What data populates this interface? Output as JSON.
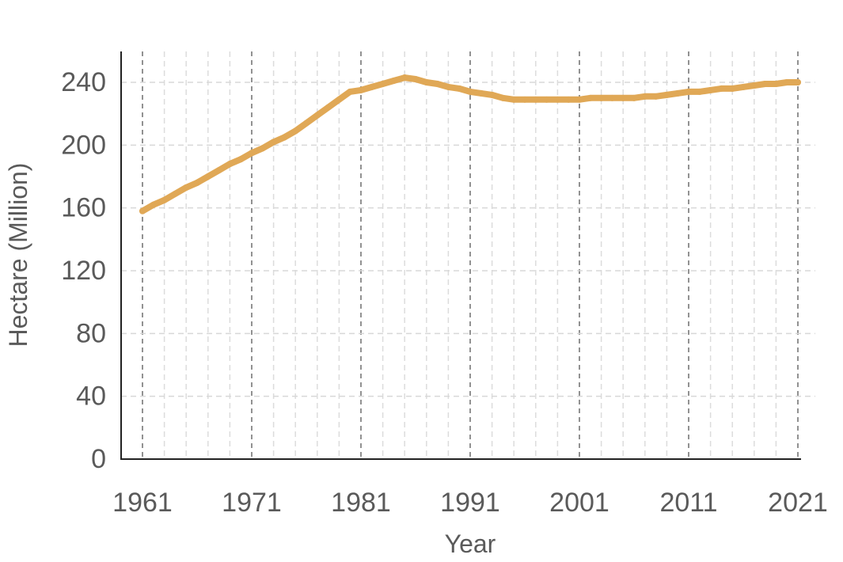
{
  "chart_data": {
    "type": "line",
    "title": "",
    "xlabel": "Year",
    "ylabel": "Hectare (Million)",
    "xlim": [
      1961,
      2021
    ],
    "ylim": [
      0,
      260
    ],
    "x_ticks": [
      1961,
      1971,
      1981,
      1991,
      2001,
      2011,
      2021
    ],
    "y_ticks": [
      0,
      40,
      80,
      120,
      160,
      200,
      240
    ],
    "grid": true,
    "legend": "none",
    "series": [
      {
        "color": "#e0a856",
        "x": [
          1961,
          1962,
          1963,
          1964,
          1965,
          1966,
          1967,
          1968,
          1969,
          1970,
          1971,
          1972,
          1973,
          1974,
          1975,
          1976,
          1977,
          1978,
          1979,
          1980,
          1981,
          1982,
          1983,
          1984,
          1985,
          1986,
          1987,
          1988,
          1989,
          1990,
          1991,
          1992,
          1993,
          1994,
          1995,
          1996,
          1997,
          1998,
          1999,
          2000,
          2001,
          2002,
          2003,
          2004,
          2005,
          2006,
          2007,
          2008,
          2009,
          2010,
          2011,
          2012,
          2013,
          2014,
          2015,
          2016,
          2017,
          2018,
          2019,
          2020,
          2021
        ],
        "y": [
          158,
          162,
          165,
          169,
          173,
          176,
          180,
          184,
          188,
          191,
          195,
          198,
          202,
          205,
          209,
          214,
          219,
          224,
          229,
          234,
          235,
          237,
          239,
          241,
          243,
          242,
          240,
          239,
          237,
          236,
          234,
          233,
          232,
          230,
          229,
          229,
          229,
          229,
          229,
          229,
          229,
          230,
          230,
          230,
          230,
          230,
          231,
          231,
          232,
          233,
          234,
          234,
          235,
          236,
          236,
          237,
          238,
          239,
          239,
          240,
          240
        ]
      }
    ]
  }
}
